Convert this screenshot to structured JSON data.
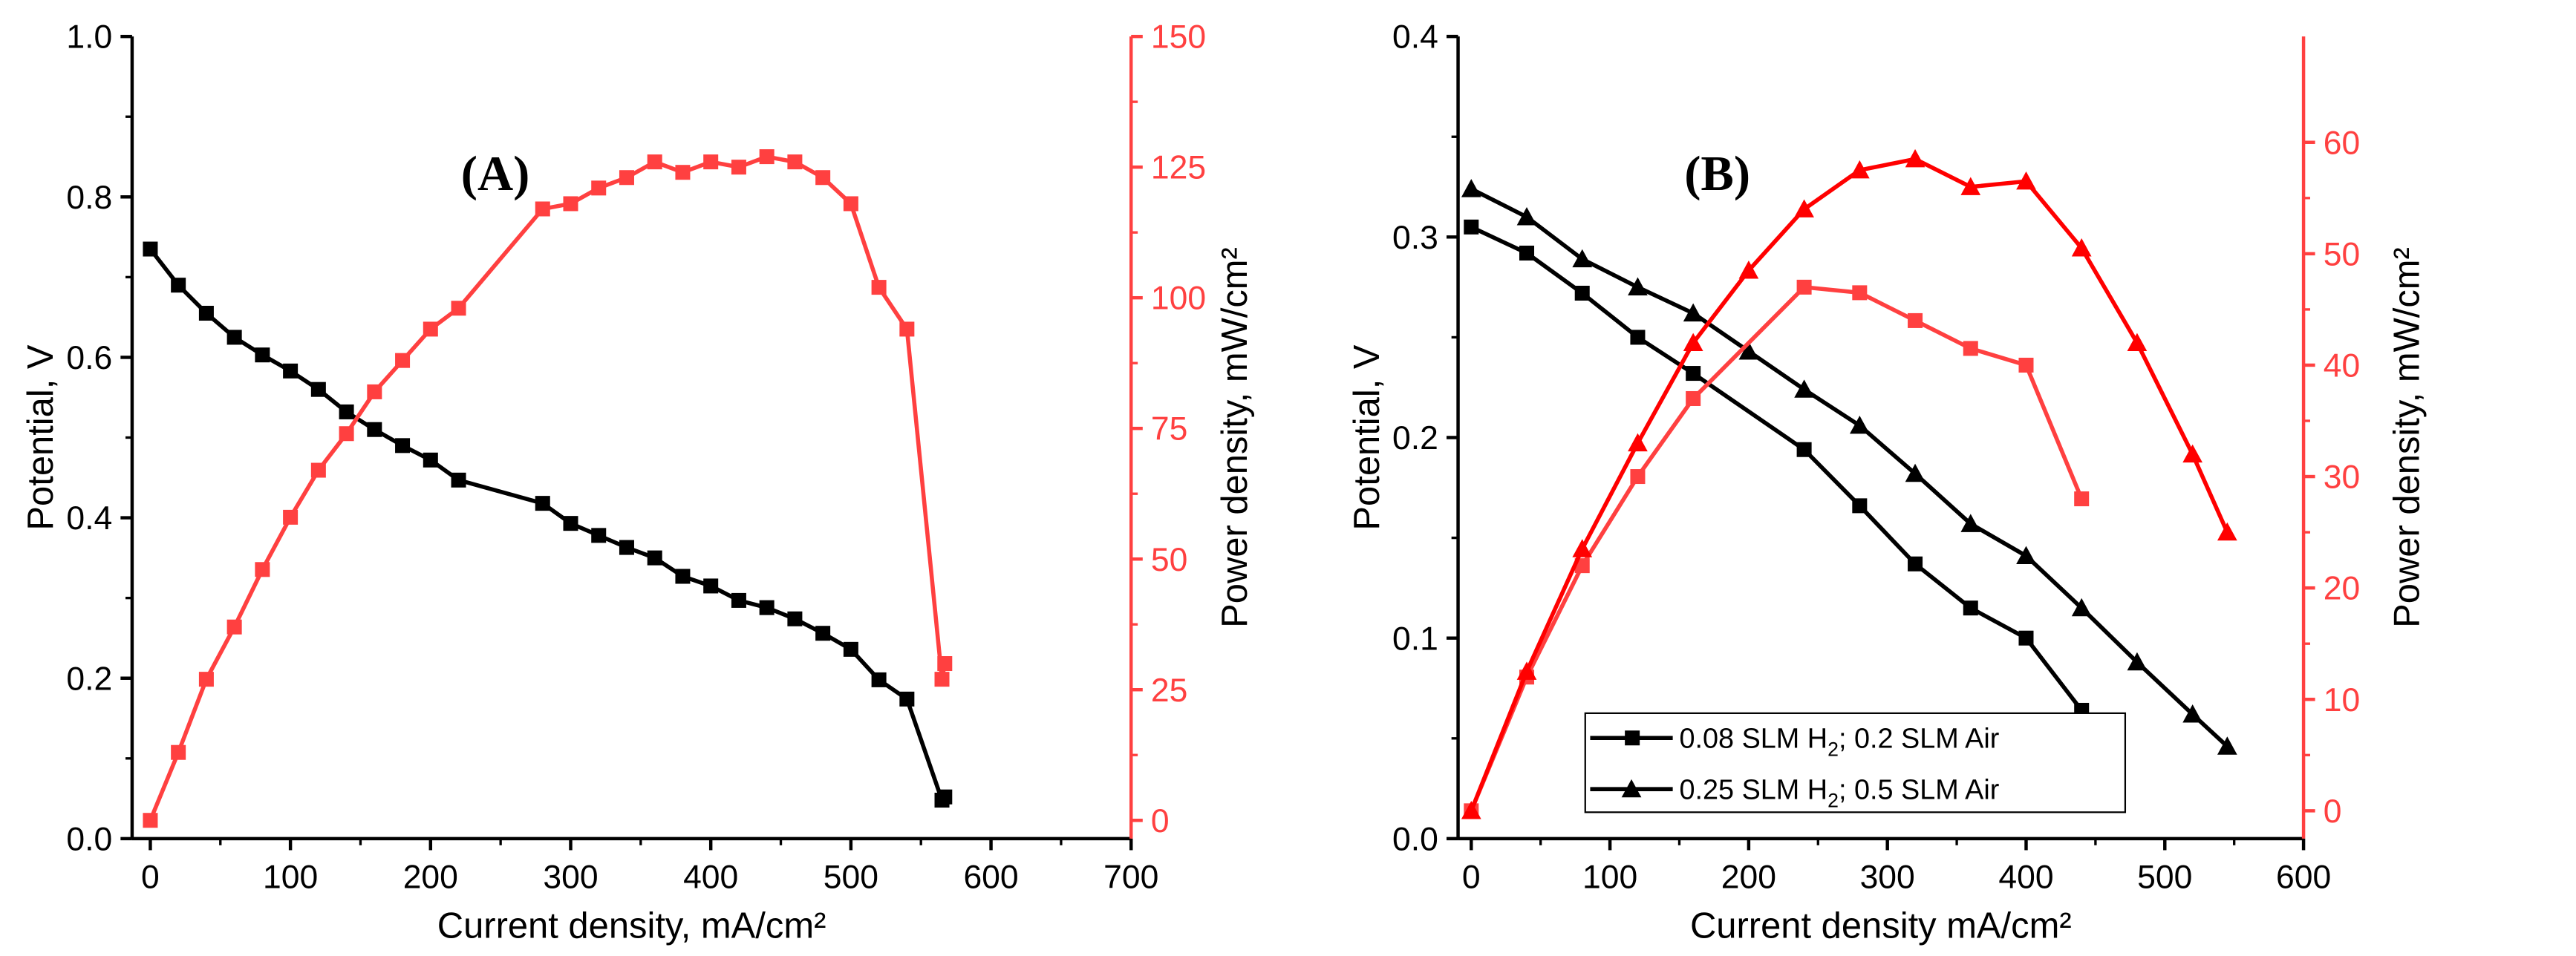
{
  "chart_data": [
    {
      "type": "line",
      "panel_label": "(A)",
      "xlabel": "Current density, mA/cm²",
      "ylabel": "Potential, V",
      "y2label": "Power density, mW/cm²",
      "xlim": [
        -13,
        700
      ],
      "ylim": [
        0,
        1.0
      ],
      "y2lim": [
        -3.5,
        150
      ],
      "xticks": [
        0,
        100,
        200,
        300,
        400,
        500,
        600,
        700
      ],
      "yticks": [
        0.0,
        0.2,
        0.4,
        0.6,
        0.8,
        1.0
      ],
      "y2ticks": [
        0,
        25,
        50,
        75,
        100,
        125,
        150
      ],
      "colors": {
        "potential": "#000000",
        "power": "#ff4040"
      },
      "series": [
        {
          "name": "Potential",
          "axis": "left",
          "marker": "square",
          "color": "#000000",
          "x": [
            0,
            20,
            40,
            60,
            80,
            100,
            120,
            140,
            160,
            180,
            200,
            220,
            280,
            300,
            320,
            340,
            360,
            380,
            400,
            420,
            440,
            460,
            480,
            500,
            520,
            540,
            565,
            567
          ],
          "y": [
            0.735,
            0.69,
            0.655,
            0.625,
            0.603,
            0.583,
            0.56,
            0.532,
            0.51,
            0.49,
            0.472,
            0.447,
            0.418,
            0.393,
            0.378,
            0.363,
            0.35,
            0.327,
            0.315,
            0.297,
            0.288,
            0.274,
            0.256,
            0.236,
            0.198,
            0.174,
            0.048,
            0.052
          ]
        },
        {
          "name": "Power density",
          "axis": "right",
          "marker": "square",
          "color": "#ff4040",
          "x": [
            0,
            20,
            40,
            60,
            80,
            100,
            120,
            140,
            160,
            180,
            200,
            220,
            280,
            300,
            320,
            340,
            360,
            380,
            400,
            420,
            440,
            460,
            480,
            500,
            520,
            540,
            565,
            567
          ],
          "y": [
            0,
            13,
            27,
            37,
            48,
            58,
            67,
            74,
            82,
            88,
            94,
            98,
            117,
            118,
            121,
            123,
            126,
            124,
            126,
            125,
            127,
            126,
            123,
            118,
            102,
            94,
            27,
            30
          ]
        }
      ]
    },
    {
      "type": "line",
      "panel_label": "(B)",
      "xlabel": "Current density mA/cm²",
      "ylabel": "Potential, V",
      "y2label": "Power density, mW/cm²",
      "xlim": [
        -9.5,
        600
      ],
      "ylim": [
        0,
        0.4
      ],
      "y2lim": [
        -2.5,
        69.5
      ],
      "xticks": [
        0,
        100,
        200,
        300,
        400,
        500,
        600
      ],
      "yticks": [
        0.0,
        0.1,
        0.2,
        0.3,
        0.4
      ],
      "y2ticks": [
        0,
        10,
        20,
        30,
        40,
        50,
        60
      ],
      "legend": {
        "placement": "bottom-left",
        "entries": [
          {
            "pre": "0.08 SLM H",
            "sub": "2",
            "post": "; 0.2 SLM Air",
            "marker": "square"
          },
          {
            "pre": "0.25 SLM H",
            "sub": "2",
            "post": "; 0.5 SLM Air",
            "marker": "triangle"
          }
        ]
      },
      "series": [
        {
          "name": "0.08 SLM H2; 0.2 SLM Air potential",
          "axis": "left",
          "marker": "square",
          "color": "#000000",
          "x": [
            0,
            40,
            80,
            120,
            160,
            240,
            280,
            320,
            360,
            400,
            440
          ],
          "y": [
            0.305,
            0.292,
            0.272,
            0.25,
            0.232,
            0.194,
            0.166,
            0.137,
            0.115,
            0.1,
            0.064
          ]
        },
        {
          "name": "0.25 SLM H2; 0.5 SLM Air potential",
          "axis": "left",
          "marker": "triangle",
          "color": "#000000",
          "x": [
            0,
            40,
            80,
            120,
            160,
            200,
            240,
            280,
            320,
            360,
            400,
            440,
            480,
            520,
            545
          ],
          "y": [
            0.324,
            0.31,
            0.289,
            0.275,
            0.262,
            0.243,
            0.224,
            0.206,
            0.182,
            0.157,
            0.141,
            0.115,
            0.088,
            0.062,
            0.046
          ]
        },
        {
          "name": "0.08 SLM H2; 0.2 SLM Air power",
          "axis": "right",
          "marker": "square",
          "color": "#ff4040",
          "x": [
            0,
            40,
            80,
            120,
            160,
            240,
            280,
            320,
            360,
            400,
            440
          ],
          "y": [
            0,
            12,
            22,
            30,
            37,
            47,
            46.5,
            44,
            41.5,
            40,
            28
          ]
        },
        {
          "name": "0.25 SLM H2; 0.5 SLM Air power",
          "axis": "right",
          "marker": "triangle",
          "color": "#ff0000",
          "x": [
            0,
            40,
            80,
            120,
            160,
            200,
            240,
            280,
            320,
            360,
            400,
            440,
            480,
            520,
            545
          ],
          "y": [
            0,
            12.5,
            23.5,
            33,
            42,
            48.5,
            54,
            57.5,
            58.5,
            56,
            56.5,
            50.5,
            42,
            32,
            25
          ]
        }
      ]
    }
  ]
}
